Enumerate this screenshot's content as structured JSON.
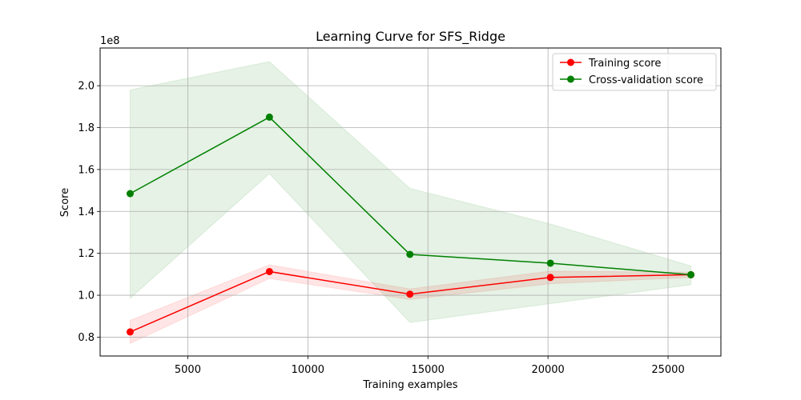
{
  "chart_data": {
    "type": "line",
    "title": "Learning Curve for SFS_Ridge",
    "xlabel": "Training examples",
    "ylabel": "Score",
    "y_scale_label": "1e8",
    "xlim": [
      1350,
      27200
    ],
    "ylim": [
      0.71,
      2.18
    ],
    "x_ticks": [
      5000,
      10000,
      15000,
      20000,
      25000
    ],
    "x_tick_labels": [
      "5000",
      "10000",
      "15000",
      "20000",
      "25000"
    ],
    "y_ticks": [
      0.8,
      1.0,
      1.2,
      1.4,
      1.6,
      1.8,
      2.0
    ],
    "y_tick_labels": [
      "0.8",
      "1.0",
      "1.2",
      "1.4",
      "1.6",
      "1.8",
      "2.0"
    ],
    "grid": true,
    "legend_position": "top-right",
    "x": [
      2600,
      8400,
      14250,
      20100,
      25950
    ],
    "series": [
      {
        "name": "Training score",
        "color": "#ff0000",
        "band_color": "#ff0000",
        "values": [
          0.825,
          1.113,
          1.005,
          1.085,
          1.098
        ],
        "upper": [
          0.88,
          1.145,
          1.03,
          1.115,
          1.11
        ],
        "lower": [
          0.77,
          1.08,
          0.98,
          1.055,
          1.085
        ]
      },
      {
        "name": "Cross-validation score",
        "color": "#008000",
        "band_color": "#008000",
        "values": [
          1.485,
          1.85,
          1.195,
          1.153,
          1.098
        ],
        "upper": [
          1.98,
          2.115,
          1.51,
          1.34,
          1.14
        ],
        "lower": [
          0.985,
          1.58,
          0.87,
          0.96,
          1.05
        ]
      }
    ]
  }
}
